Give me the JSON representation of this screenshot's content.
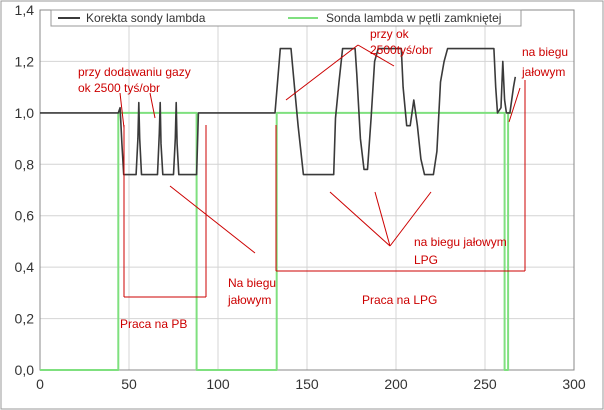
{
  "chart_data": {
    "type": "line",
    "xlim": [
      0,
      300
    ],
    "ylim": [
      0.0,
      1.4
    ],
    "x_ticks": [
      "0",
      "50",
      "100",
      "150",
      "200",
      "250",
      "300"
    ],
    "y_ticks": [
      "0,0",
      "0,2",
      "0,4",
      "0,6",
      "0,8",
      "1,0",
      "1,2",
      "1,4"
    ],
    "grid": true,
    "legend_position": "top",
    "series": [
      {
        "name": "Korekta sondy lambda",
        "color": "#3a3a3a",
        "points": [
          [
            0,
            1.0
          ],
          [
            44,
            1.0
          ],
          [
            45,
            1.02
          ],
          [
            46,
            0.88
          ],
          [
            47,
            0.76
          ],
          [
            54,
            0.76
          ],
          [
            55,
            0.9
          ],
          [
            55.5,
            1.04
          ],
          [
            56,
            0.9
          ],
          [
            57,
            0.76
          ],
          [
            66,
            0.76
          ],
          [
            67,
            0.92
          ],
          [
            67.5,
            1.04
          ],
          [
            68,
            0.88
          ],
          [
            69,
            0.76
          ],
          [
            75,
            0.76
          ],
          [
            76,
            0.9
          ],
          [
            76.5,
            1.04
          ],
          [
            77,
            0.88
          ],
          [
            78,
            0.76
          ],
          [
            88,
            0.76
          ],
          [
            89,
            1.0
          ],
          [
            132,
            1.0
          ],
          [
            133,
            1.08
          ],
          [
            135,
            1.25
          ],
          [
            141,
            1.25
          ],
          [
            143,
            1.1
          ],
          [
            145,
            0.95
          ],
          [
            148,
            0.76
          ],
          [
            165,
            0.76
          ],
          [
            166,
            0.98
          ],
          [
            168,
            1.12
          ],
          [
            170,
            1.25
          ],
          [
            177,
            1.25
          ],
          [
            178,
            1.15
          ],
          [
            180,
            0.9
          ],
          [
            182,
            0.78
          ],
          [
            184,
            0.78
          ],
          [
            186,
            0.98
          ],
          [
            188,
            1.2
          ],
          [
            190,
            1.25
          ],
          [
            203,
            1.25
          ],
          [
            204,
            1.1
          ],
          [
            206,
            0.95
          ],
          [
            208,
            0.95
          ],
          [
            210,
            1.05
          ],
          [
            212,
            0.95
          ],
          [
            214,
            0.82
          ],
          [
            216,
            0.76
          ],
          [
            221,
            0.76
          ],
          [
            223,
            0.85
          ],
          [
            225,
            1.12
          ],
          [
            227,
            1.2
          ],
          [
            229,
            1.25
          ],
          [
            255,
            1.25
          ],
          [
            256,
            1.1
          ],
          [
            257,
            1.0
          ],
          [
            259,
            1.02
          ],
          [
            260,
            1.2
          ],
          [
            261,
            1.05
          ],
          [
            262,
            1.0
          ],
          [
            264,
            1.0
          ],
          [
            265,
            1.05
          ],
          [
            266,
            1.1
          ],
          [
            267,
            1.14
          ]
        ]
      },
      {
        "name": "Sonda lambda w pętli zamkniętej",
        "color": "#7fe07f",
        "points": [
          [
            0,
            0.0
          ],
          [
            44,
            0.0
          ],
          [
            44,
            1.0
          ],
          [
            88,
            1.0
          ],
          [
            88,
            0.0
          ],
          [
            133,
            0.0
          ],
          [
            133,
            1.0
          ],
          [
            261,
            1.0
          ],
          [
            261,
            0.0
          ],
          [
            263,
            0.0
          ],
          [
            263,
            1.0
          ],
          [
            265,
            1.0
          ]
        ]
      }
    ],
    "annotations": [
      {
        "lines": [
          "przy dodawaniu gazy",
          "ok 2500 tyś/obr"
        ]
      },
      {
        "lines": [
          "przy ok",
          "2500tyś/obr"
        ]
      },
      {
        "lines": [
          "na biegu",
          "jałowym"
        ]
      },
      {
        "lines": [
          "na biegu jałowym",
          "LPG"
        ]
      },
      {
        "lines": [
          "Na biegu",
          "jałowym"
        ]
      },
      {
        "lines": [
          "Praca na LPG"
        ]
      },
      {
        "lines": [
          "Praca na PB"
        ]
      }
    ]
  }
}
